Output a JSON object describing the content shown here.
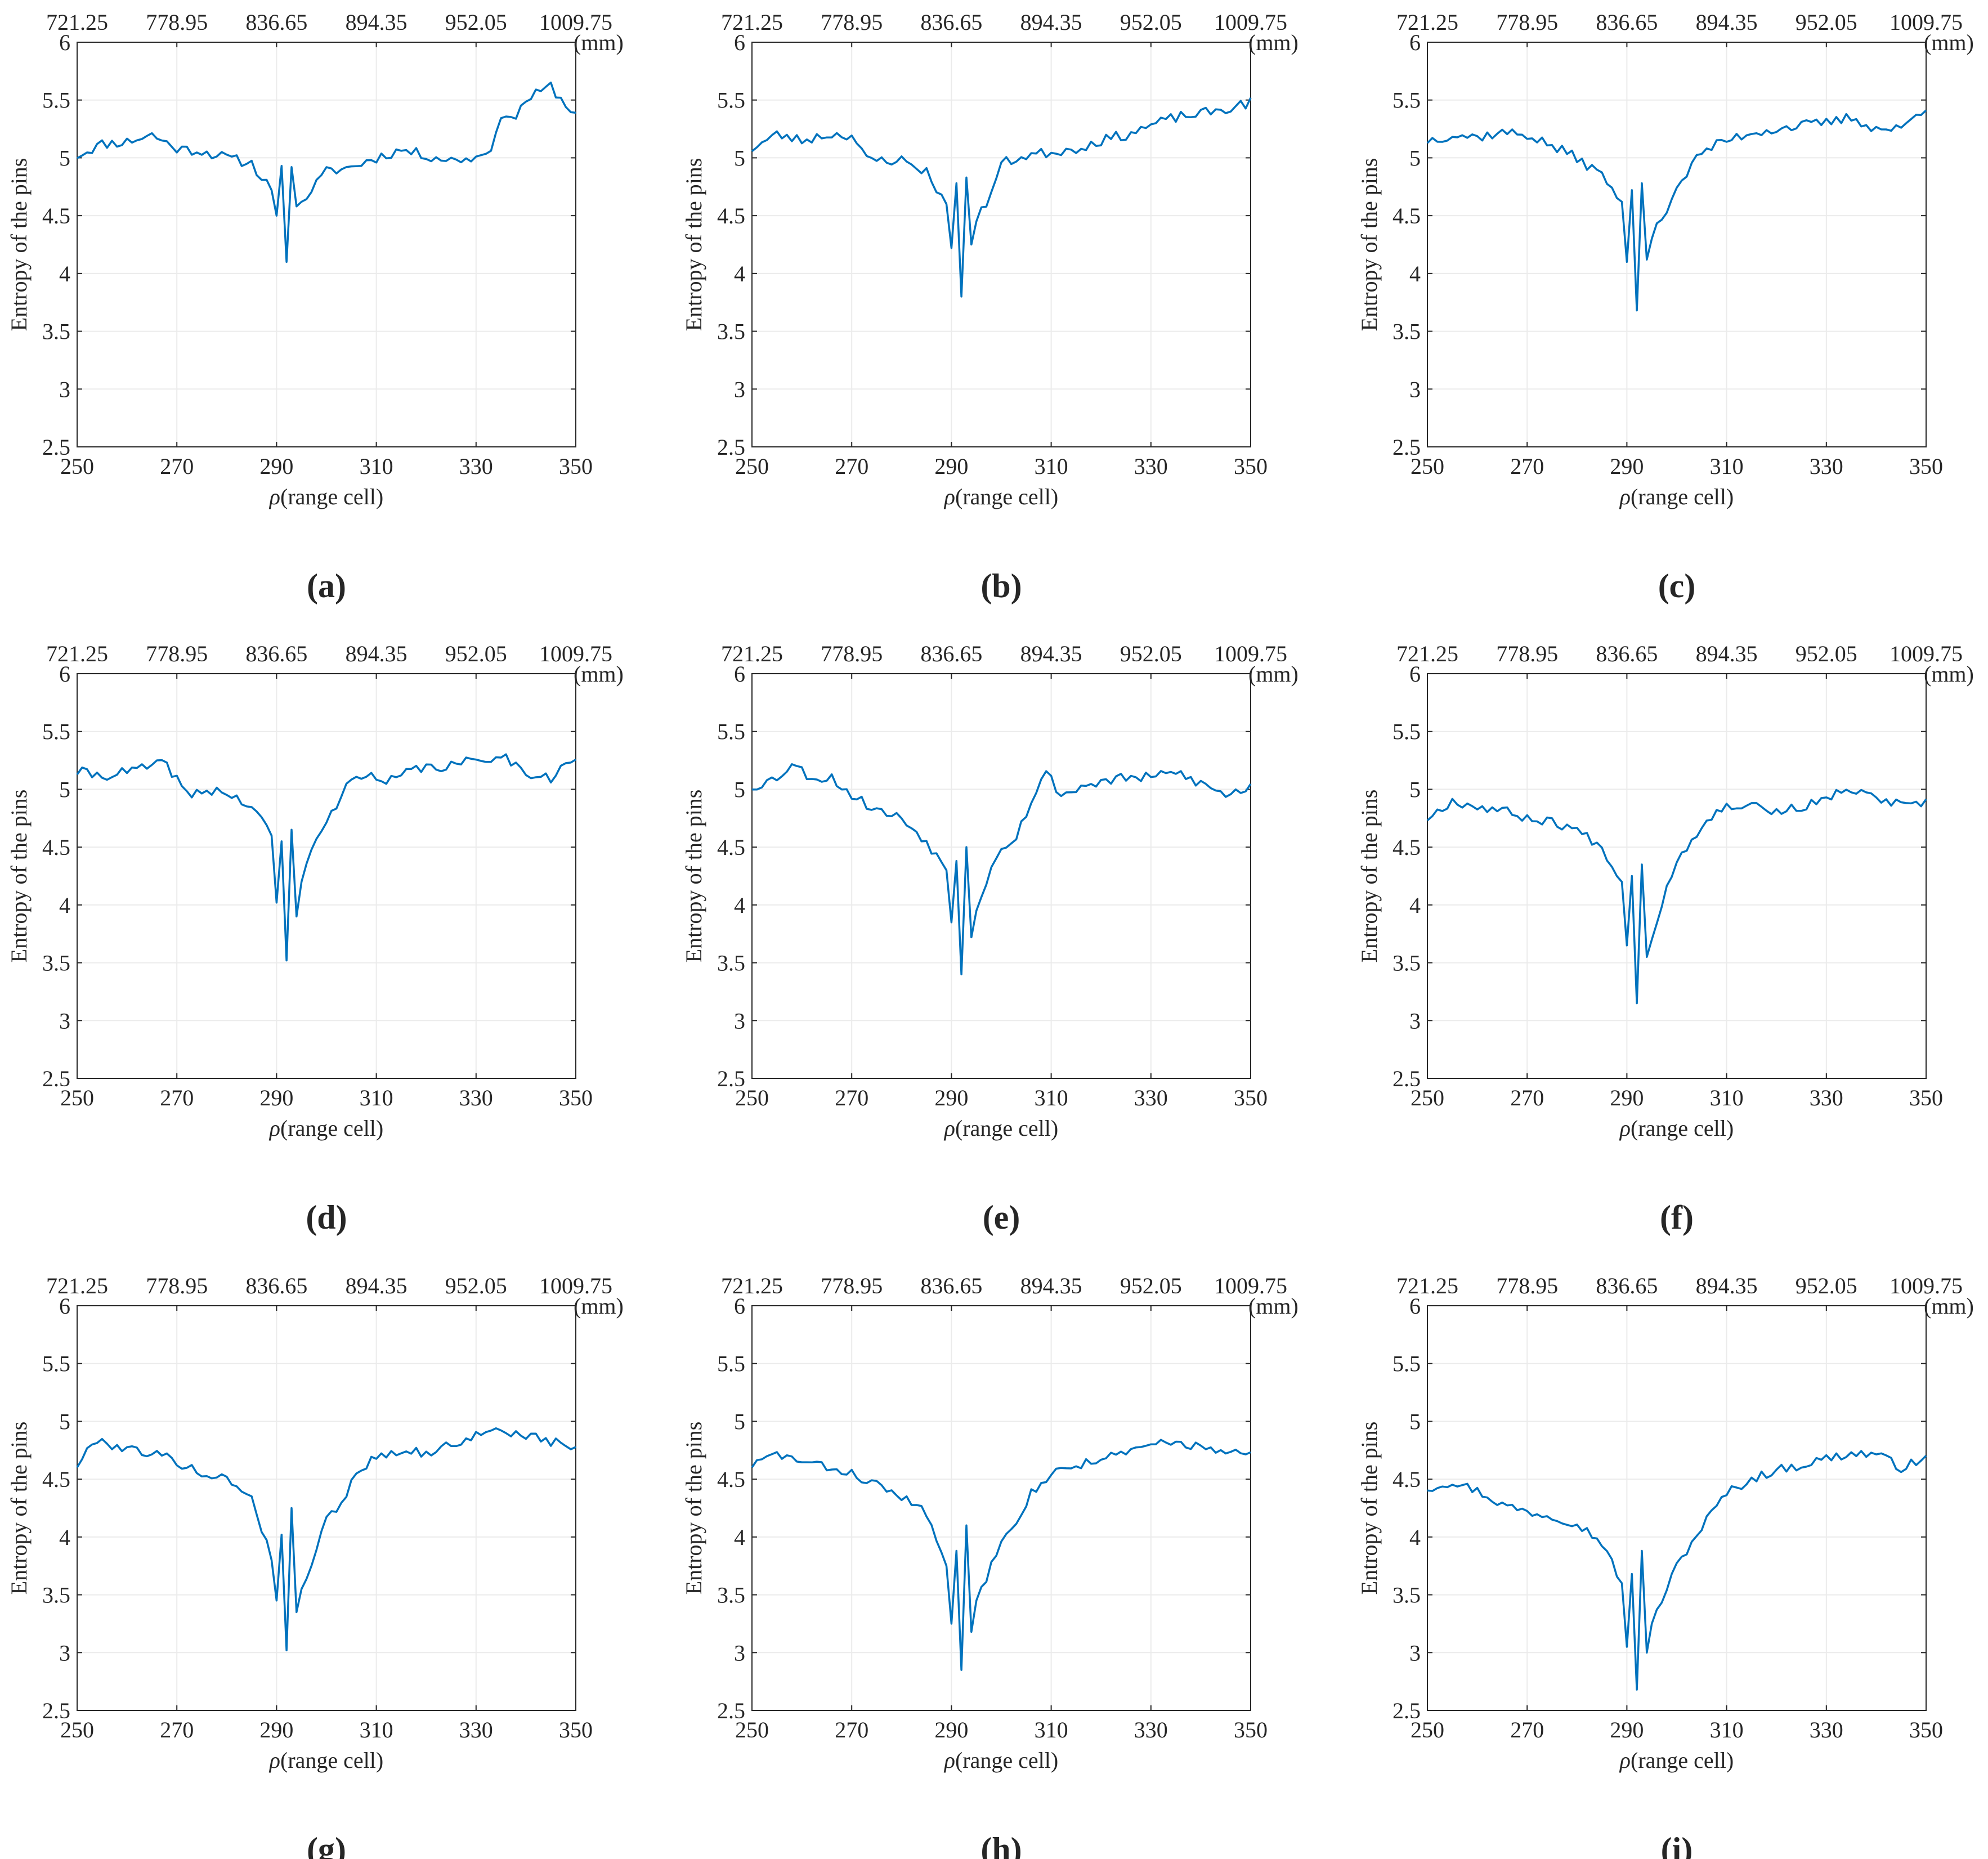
{
  "figure": {
    "shared_axes": {
      "bottom_ticks": [
        "250",
        "270",
        "290",
        "310",
        "330",
        "350"
      ],
      "top_ticks": [
        "721.25",
        "778.95",
        "836.65",
        "894.35",
        "952.05",
        "1009.75"
      ],
      "y_ticks": [
        "2.5",
        "3",
        "3.5",
        "4",
        "4.5",
        "5",
        "5.5",
        "6"
      ],
      "top_unit": "(mm)",
      "ylabel": "Entropy of the pins",
      "xlabel_symbol": "ρ",
      "xlabel_text": "(range cell)"
    },
    "line_color": "#0072BD",
    "grid_color": "#ebebeb"
  },
  "chart_data": [
    {
      "type": "line",
      "caption": "(a)",
      "xlabel": "ρ(range cell)",
      "ylabel": "Entropy of the pins",
      "xlim": [
        250,
        350
      ],
      "ylim": [
        2.5,
        6
      ],
      "key_x": [
        250,
        255,
        260,
        265,
        270,
        275,
        280,
        285,
        289,
        290,
        291,
        292,
        293,
        294,
        295,
        300,
        305,
        310,
        315,
        320,
        325,
        330,
        333,
        336,
        338,
        340,
        345,
        348,
        350
      ],
      "key_y": [
        5.02,
        5.12,
        5.14,
        5.2,
        5.08,
        5.06,
        5.0,
        4.95,
        4.72,
        4.5,
        4.93,
        4.1,
        4.92,
        4.58,
        4.62,
        4.88,
        4.92,
        5.0,
        5.07,
        5.02,
        4.98,
        5.0,
        5.1,
        5.4,
        5.35,
        5.5,
        5.62,
        5.45,
        5.4
      ],
      "noise": 0.045,
      "seed": 11
    },
    {
      "type": "line",
      "caption": "(b)",
      "xlabel": "ρ(range cell)",
      "ylabel": "Entropy of the pins",
      "xlim": [
        250,
        350
      ],
      "ylim": [
        2.5,
        6
      ],
      "key_x": [
        250,
        255,
        260,
        265,
        270,
        273,
        280,
        285,
        289,
        290,
        291,
        292,
        293,
        294,
        295,
        298,
        300,
        305,
        310,
        315,
        320,
        325,
        330,
        335,
        340,
        345,
        350
      ],
      "key_y": [
        5.08,
        5.2,
        5.15,
        5.2,
        5.2,
        4.98,
        4.98,
        4.88,
        4.6,
        4.22,
        4.78,
        3.8,
        4.83,
        4.25,
        4.45,
        4.7,
        4.95,
        5.02,
        5.05,
        5.08,
        5.15,
        5.2,
        5.28,
        5.35,
        5.38,
        5.42,
        5.48
      ],
      "noise": 0.045,
      "seed": 23
    },
    {
      "type": "line",
      "caption": "(c)",
      "xlabel": "ρ(range cell)",
      "ylabel": "Entropy of the pins",
      "xlim": [
        250,
        350
      ],
      "ylim": [
        2.5,
        6
      ],
      "key_x": [
        250,
        255,
        260,
        265,
        270,
        275,
        280,
        285,
        289,
        290,
        291,
        292,
        293,
        294,
        295,
        300,
        305,
        310,
        315,
        320,
        325,
        330,
        335,
        340,
        345,
        350
      ],
      "key_y": [
        5.15,
        5.2,
        5.18,
        5.22,
        5.2,
        5.1,
        5.0,
        4.85,
        4.62,
        4.1,
        4.72,
        3.68,
        4.78,
        4.12,
        4.3,
        4.75,
        5.05,
        5.15,
        5.22,
        5.25,
        5.28,
        5.3,
        5.35,
        5.25,
        5.25,
        5.45
      ],
      "noise": 0.045,
      "seed": 37
    },
    {
      "type": "line",
      "caption": "(d)",
      "xlabel": "ρ(range cell)",
      "ylabel": "Entropy of the pins",
      "xlim": [
        250,
        350
      ],
      "ylim": [
        2.5,
        6
      ],
      "key_x": [
        250,
        255,
        260,
        265,
        268,
        272,
        278,
        285,
        289,
        290,
        291,
        292,
        293,
        294,
        295,
        297,
        300,
        303,
        306,
        312,
        318,
        325,
        330,
        335,
        340,
        345,
        350
      ],
      "key_y": [
        5.15,
        5.12,
        5.15,
        5.2,
        5.22,
        4.95,
        5.0,
        4.85,
        4.6,
        4.02,
        4.55,
        3.52,
        4.65,
        3.9,
        4.2,
        4.5,
        4.7,
        4.95,
        5.15,
        5.05,
        5.18,
        5.2,
        5.25,
        5.3,
        5.15,
        5.1,
        5.28
      ],
      "noise": 0.045,
      "seed": 41
    },
    {
      "type": "line",
      "caption": "(e)",
      "xlabel": "ρ(range cell)",
      "ylabel": "Entropy of the pins",
      "xlim": [
        250,
        350
      ],
      "ylim": [
        2.5,
        6
      ],
      "key_x": [
        250,
        255,
        258,
        262,
        266,
        270,
        275,
        280,
        285,
        289,
        290,
        291,
        292,
        293,
        294,
        295,
        298,
        300,
        303,
        306,
        309,
        312,
        318,
        325,
        330,
        335,
        340,
        345,
        350
      ],
      "key_y": [
        5.02,
        5.1,
        5.22,
        5.1,
        5.1,
        4.95,
        4.82,
        4.75,
        4.55,
        4.3,
        3.85,
        4.38,
        3.4,
        4.5,
        3.72,
        3.95,
        4.35,
        4.5,
        4.6,
        4.9,
        5.15,
        4.95,
        5.05,
        5.1,
        5.1,
        5.15,
        5.05,
        4.95,
        5.02
      ],
      "noise": 0.045,
      "seed": 53
    },
    {
      "type": "line",
      "caption": "(f)",
      "xlabel": "ρ(range cell)",
      "ylabel": "Entropy of the pins",
      "xlim": [
        250,
        350
      ],
      "ylim": [
        2.5,
        6
      ],
      "key_x": [
        250,
        255,
        260,
        265,
        270,
        275,
        280,
        285,
        289,
        290,
        291,
        292,
        293,
        294,
        295,
        298,
        300,
        303,
        306,
        310,
        315,
        320,
        325,
        330,
        333,
        338,
        342,
        346,
        350
      ],
      "key_y": [
        4.75,
        4.9,
        4.85,
        4.82,
        4.75,
        4.72,
        4.65,
        4.5,
        4.2,
        3.65,
        4.25,
        3.15,
        4.35,
        3.55,
        3.7,
        4.15,
        4.4,
        4.55,
        4.75,
        4.85,
        4.88,
        4.8,
        4.85,
        4.9,
        5.0,
        4.95,
        4.9,
        4.85,
        4.88
      ],
      "noise": 0.04,
      "seed": 67
    },
    {
      "type": "line",
      "caption": "(g)",
      "xlabel": "ρ(range cell)",
      "ylabel": "Entropy of the pins",
      "xlim": [
        250,
        350
      ],
      "ylim": [
        2.5,
        6
      ],
      "key_x": [
        250,
        254,
        258,
        262,
        266,
        270,
        275,
        280,
        285,
        289,
        290,
        291,
        292,
        293,
        294,
        295,
        298,
        300,
        303,
        306,
        310,
        315,
        320,
        325,
        330,
        335,
        340,
        345,
        350
      ],
      "key_y": [
        4.62,
        4.85,
        4.78,
        4.75,
        4.72,
        4.65,
        4.55,
        4.5,
        4.35,
        3.8,
        3.45,
        4.02,
        3.02,
        4.25,
        3.35,
        3.55,
        3.9,
        4.15,
        4.3,
        4.55,
        4.7,
        4.75,
        4.72,
        4.8,
        4.88,
        4.92,
        4.88,
        4.82,
        4.78
      ],
      "noise": 0.04,
      "seed": 79
    },
    {
      "type": "line",
      "caption": "(h)",
      "xlabel": "ρ(range cell)",
      "ylabel": "Entropy of the pins",
      "xlim": [
        250,
        350
      ],
      "ylim": [
        2.5,
        6
      ],
      "key_x": [
        250,
        255,
        260,
        265,
        270,
        275,
        280,
        285,
        289,
        290,
        291,
        292,
        293,
        294,
        295,
        298,
        300,
        303,
        306,
        310,
        315,
        320,
        325,
        330,
        335,
        340,
        345,
        350
      ],
      "key_y": [
        4.62,
        4.72,
        4.65,
        4.6,
        4.55,
        4.45,
        4.35,
        4.2,
        3.75,
        3.25,
        3.88,
        2.85,
        4.1,
        3.18,
        3.45,
        3.75,
        4.0,
        4.15,
        4.38,
        4.55,
        4.62,
        4.68,
        4.72,
        4.8,
        4.82,
        4.78,
        4.72,
        4.72
      ],
      "noise": 0.04,
      "seed": 83
    },
    {
      "type": "line",
      "caption": "(i)",
      "xlabel": "ρ(range cell)",
      "ylabel": "Entropy of the pins",
      "xlim": [
        250,
        350
      ],
      "ylim": [
        2.5,
        6
      ],
      "key_x": [
        250,
        255,
        260,
        265,
        270,
        275,
        280,
        285,
        289,
        290,
        291,
        292,
        293,
        294,
        295,
        298,
        300,
        303,
        306,
        310,
        315,
        320,
        325,
        330,
        335,
        340,
        345,
        350
      ],
      "key_y": [
        4.42,
        4.48,
        4.4,
        4.28,
        4.22,
        4.18,
        4.12,
        3.95,
        3.6,
        3.05,
        3.68,
        2.68,
        3.88,
        3.0,
        3.25,
        3.55,
        3.75,
        3.95,
        4.15,
        4.38,
        4.5,
        4.58,
        4.62,
        4.68,
        4.72,
        4.72,
        4.6,
        4.68
      ],
      "noise": 0.04,
      "seed": 97
    }
  ]
}
